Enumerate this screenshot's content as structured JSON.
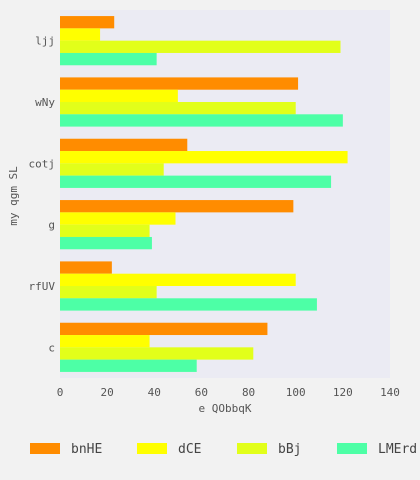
{
  "chart_data": {
    "type": "bar",
    "orientation": "horizontal",
    "categories": [
      "ljj",
      "wNy",
      "cotj",
      "g",
      "rfUV",
      "c"
    ],
    "series": [
      {
        "name": "bnHE",
        "color": "#ff8c00",
        "values": [
          23,
          101,
          54,
          99,
          22,
          88
        ]
      },
      {
        "name": "dCE",
        "color": "#ffff00",
        "values": [
          17,
          50,
          122,
          49,
          100,
          38
        ]
      },
      {
        "name": "bBj",
        "color": "#e2ff1a",
        "values": [
          119,
          100,
          44,
          38,
          41,
          82
        ]
      },
      {
        "name": "LMErd",
        "color": "#4dffa6",
        "values": [
          41,
          120,
          115,
          39,
          109,
          58
        ]
      }
    ],
    "xlabel": "e  QObbqK",
    "ylabel": "my qgm SL",
    "xlim": [
      0,
      140
    ],
    "xticks": [
      0,
      20,
      40,
      60,
      80,
      100,
      120,
      140
    ],
    "grid": false,
    "legend_position": "bottom",
    "plot_background": "#ebebf3"
  }
}
